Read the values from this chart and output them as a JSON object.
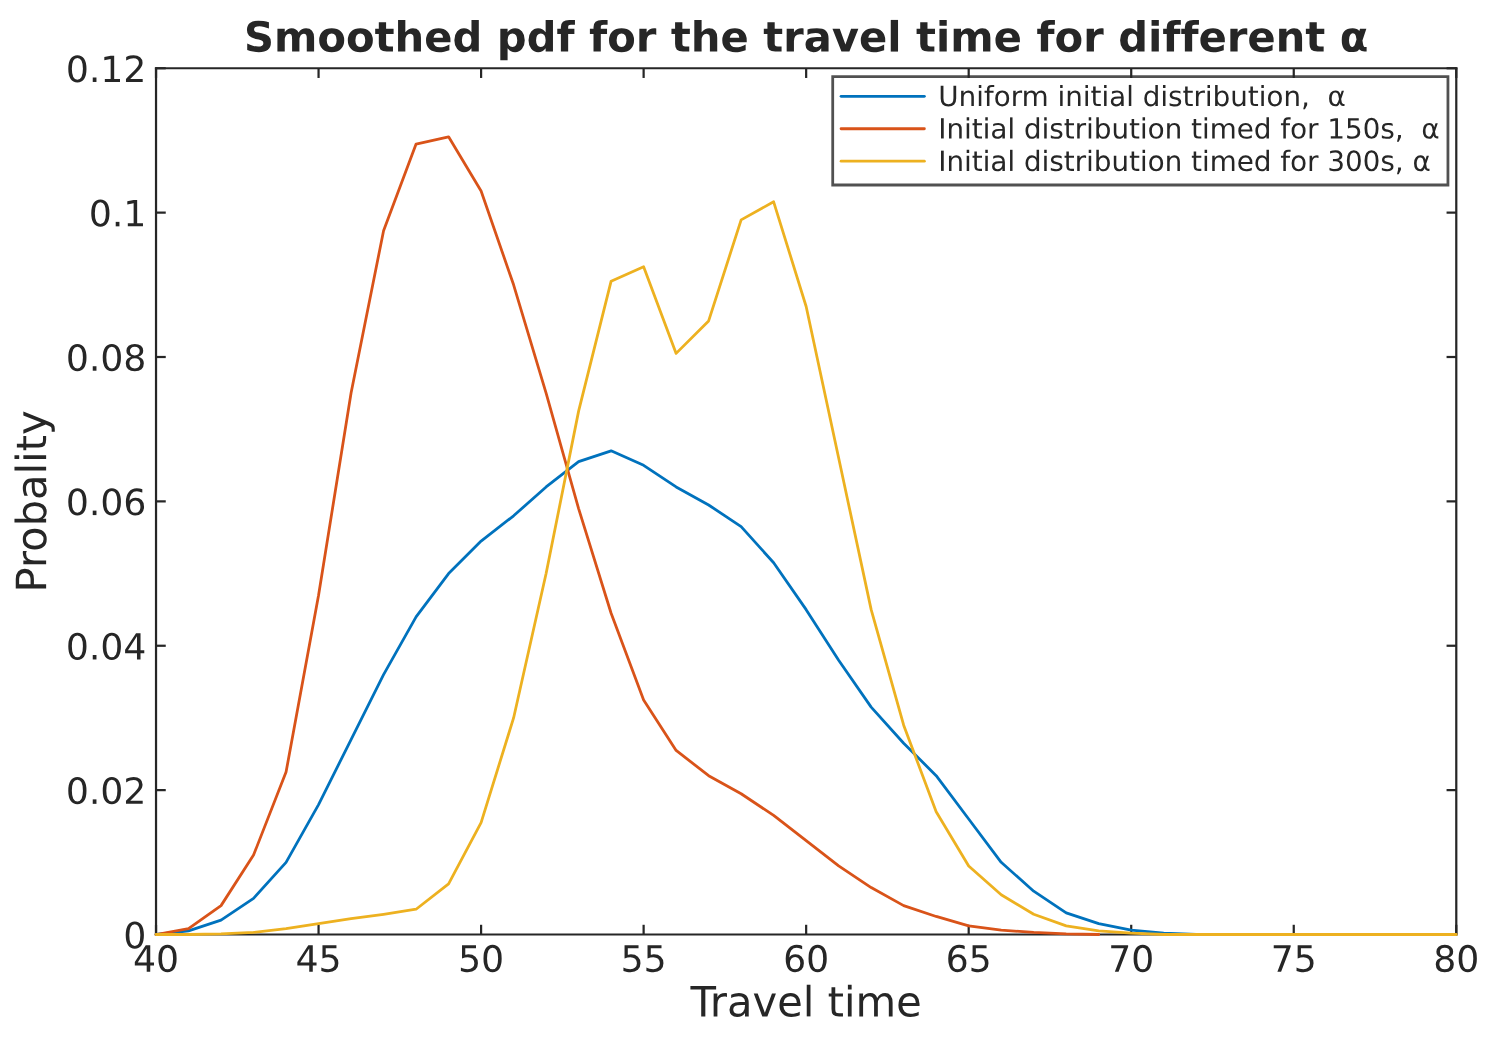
{
  "chart_data": {
    "type": "line",
    "title": "Smoothed pdf for the travel time for different α",
    "xlabel": "Travel time",
    "ylabel": "Probality",
    "x": [
      40,
      41,
      42,
      43,
      44,
      45,
      46,
      47,
      48,
      49,
      50,
      51,
      52,
      53,
      54,
      55,
      56,
      57,
      58,
      59,
      60,
      61,
      62,
      63,
      64,
      65,
      66,
      67,
      68,
      69,
      70,
      71,
      72,
      73,
      74,
      75,
      76,
      77,
      78,
      79,
      80
    ],
    "series": [
      {
        "name": "Uniform initial distribution,  α",
        "color": "#0072bd",
        "x": [
          40,
          41,
          42,
          43,
          44,
          45,
          46,
          47,
          48,
          49,
          50,
          51,
          52,
          53,
          54,
          55,
          56,
          57,
          58,
          59,
          60,
          61,
          62,
          63,
          64,
          65,
          66,
          67,
          68,
          69,
          70,
          71,
          72
        ],
        "values": [
          0,
          0.0005,
          0.002,
          0.005,
          0.01,
          0.018,
          0.027,
          0.036,
          0.044,
          0.05,
          0.0545,
          0.058,
          0.062,
          0.0655,
          0.067,
          0.065,
          0.062,
          0.0595,
          0.0565,
          0.0515,
          0.045,
          0.038,
          0.0315,
          0.0265,
          0.022,
          0.016,
          0.01,
          0.006,
          0.003,
          0.0015,
          0.0006,
          0.0002,
          0
        ]
      },
      {
        "name": "Initial distribution timed for 150s,  α",
        "color": "#d95319",
        "x": [
          40,
          41,
          42,
          43,
          44,
          45,
          46,
          47,
          48,
          49,
          50,
          51,
          52,
          53,
          54,
          55,
          56,
          57,
          58,
          59,
          60,
          61,
          62,
          63,
          64,
          65,
          66,
          67,
          68,
          69
        ],
        "values": [
          0,
          0.0008,
          0.004,
          0.011,
          0.0225,
          0.047,
          0.075,
          0.0975,
          0.1095,
          0.1105,
          0.103,
          0.09,
          0.075,
          0.059,
          0.0445,
          0.0325,
          0.0255,
          0.022,
          0.0195,
          0.0165,
          0.013,
          0.0095,
          0.0065,
          0.004,
          0.0025,
          0.0012,
          0.0006,
          0.0003,
          0.0001,
          0
        ]
      },
      {
        "name": "Initial distribution timed for 300s, α",
        "color": "#edb120",
        "values": [
          0,
          0,
          0.0001,
          0.0003,
          0.0008,
          0.0015,
          0.0022,
          0.0028,
          0.0035,
          0.007,
          0.0155,
          0.03,
          0.05,
          0.0725,
          0.0905,
          0.0925,
          0.0805,
          0.085,
          0.099,
          0.1015,
          0.087,
          0.066,
          0.045,
          0.029,
          0.017,
          0.0095,
          0.0055,
          0.0028,
          0.0012,
          0.0005,
          0.0002,
          0,
          0,
          0,
          0,
          0,
          0,
          0,
          0,
          0,
          0
        ]
      }
    ],
    "xlim": [
      40,
      80
    ],
    "xticks": [
      40,
      45,
      50,
      55,
      60,
      65,
      70,
      75,
      80
    ],
    "ylim": [
      0,
      0.12
    ],
    "yticks": [
      0,
      0.02,
      0.04,
      0.06,
      0.08,
      0.1,
      0.12
    ],
    "grid": false,
    "legend": "top right"
  }
}
